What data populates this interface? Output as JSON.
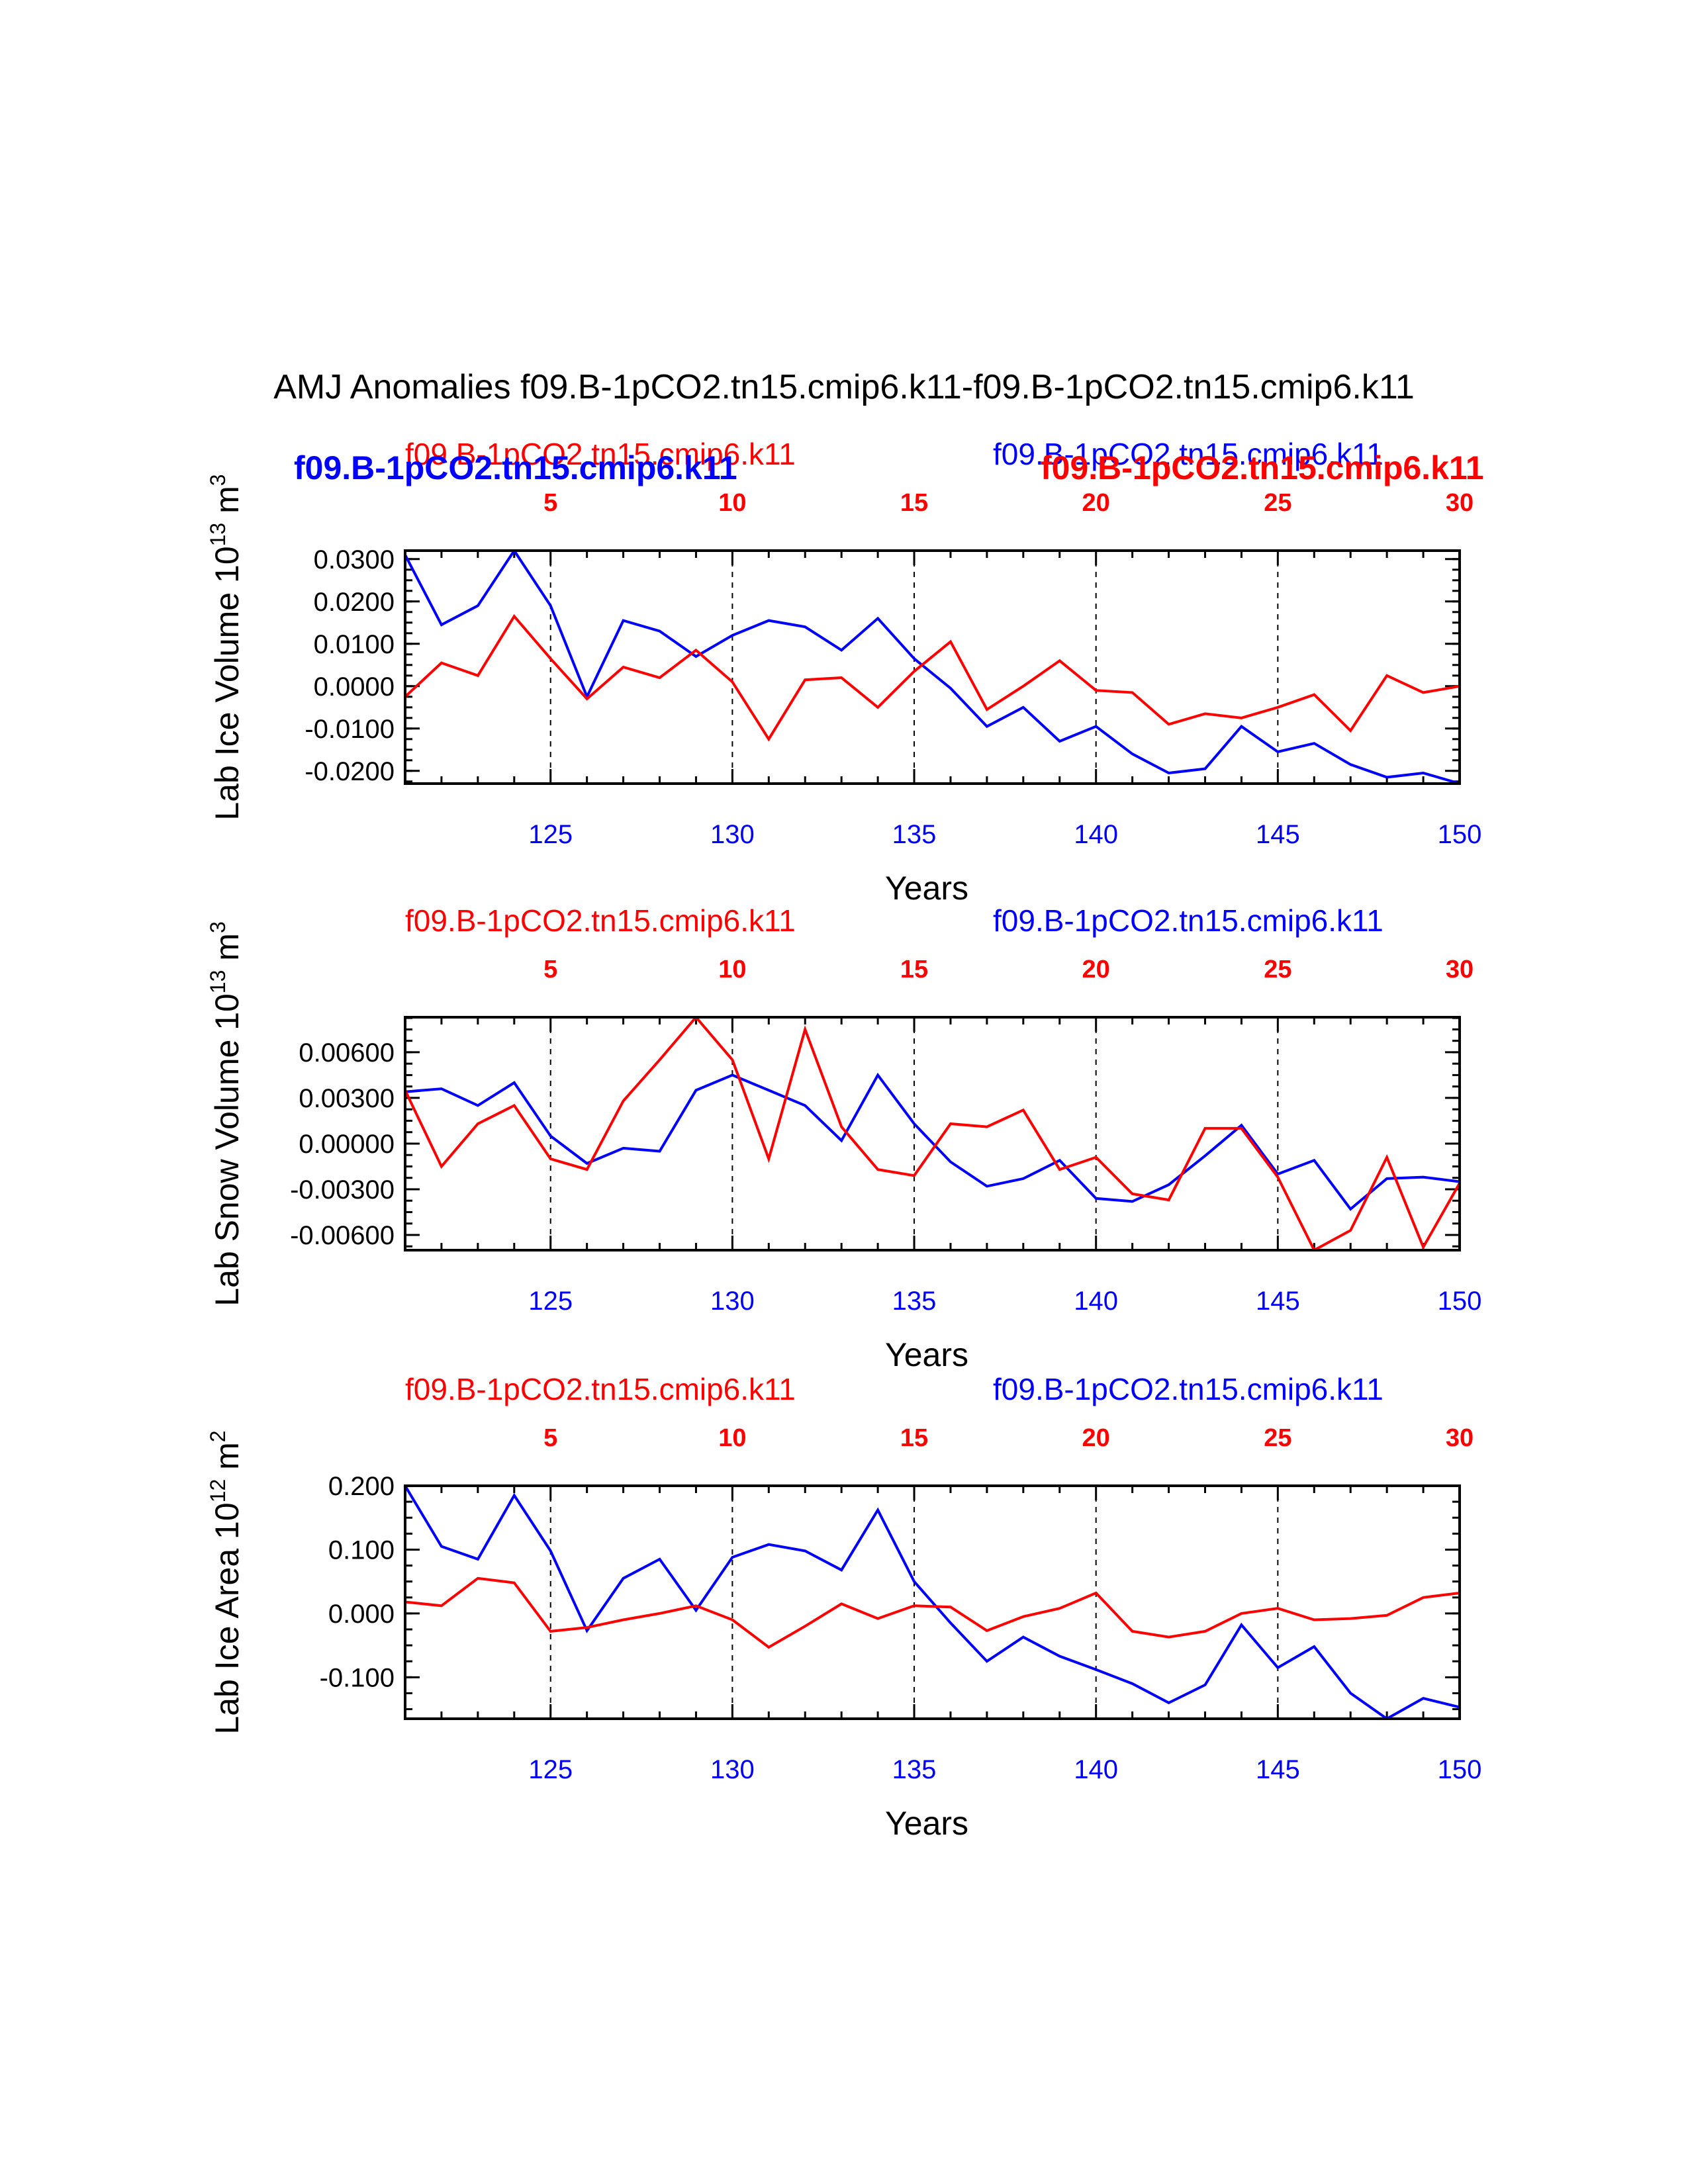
{
  "title": "AMJ Anomalies f09.B-1pCO2.tn15.cmip6.k11-f09.B-1pCO2.tn15.cmip6.k11",
  "colors": {
    "case1": "#ff0000",
    "case2": "#0000ff",
    "axis": "#000000"
  },
  "header": {
    "case1_label": "f09.B-1pCO2.tn15.cmip6.k11",
    "case2_label": "f09.B-1pCO2.tn15.cmip6.k11",
    "case1_bold_overlay": "f09.B-1pCO2.tn15.cmip6.k11",
    "case2_bold_overlay": "f09.B-1pCO2.tn15.cmip6.k11"
  },
  "chart_data": [
    {
      "type": "line",
      "ylabel_main": "Lab Ice Volume 10",
      "ylabel_exp": "13",
      "ylabel_unit": " m",
      "ylabel_unit_exp": "3",
      "xlabel": "Years",
      "xlim": [
        121,
        150
      ],
      "ylim": [
        -0.023,
        0.032
      ],
      "yticks": [
        0.03,
        0.02,
        0.01,
        0.0,
        -0.01,
        -0.02
      ],
      "ytick_labels": [
        "0.0300",
        "0.0200",
        "0.0100",
        "0.0000",
        "-0.0100",
        "-0.0200"
      ],
      "yminor_step": 0.0025,
      "xticks_bottom": [
        125,
        130,
        135,
        140,
        145,
        150
      ],
      "xticks_top_labels": [
        "5",
        "10",
        "15",
        "20",
        "25",
        "30"
      ],
      "x": [
        121,
        122,
        123,
        124,
        125,
        126,
        127,
        128,
        129,
        130,
        131,
        132,
        133,
        134,
        135,
        136,
        137,
        138,
        139,
        140,
        141,
        142,
        143,
        144,
        145,
        146,
        147,
        148,
        149,
        150
      ],
      "series": [
        {
          "name": "f09.B-1pCO2.tn15.cmip6.k11",
          "color": "#0000ff",
          "values": [
            0.031,
            0.0145,
            0.019,
            0.032,
            0.019,
            -0.0025,
            0.0155,
            0.013,
            0.007,
            0.012,
            0.0155,
            0.014,
            0.0085,
            0.016,
            0.0065,
            -0.0005,
            -0.0095,
            -0.005,
            -0.013,
            -0.0095,
            -0.016,
            -0.0205,
            -0.0195,
            -0.0095,
            -0.0155,
            -0.0135,
            -0.0185,
            -0.0215,
            -0.0205,
            -0.023
          ]
        },
        {
          "name": "f09.B-1pCO2.tn15.cmip6.k11",
          "color": "#ff0000",
          "values": [
            -0.0025,
            0.0055,
            0.0025,
            0.0165,
            0.0065,
            -0.003,
            0.0045,
            0.002,
            0.0085,
            0.001,
            -0.0125,
            0.0015,
            0.002,
            -0.005,
            0.0035,
            0.0105,
            -0.0055,
            0.0,
            0.006,
            -0.001,
            -0.0015,
            -0.009,
            -0.0065,
            -0.0075,
            -0.005,
            -0.002,
            -0.0105,
            0.0025,
            -0.0015,
            0.0
          ]
        }
      ]
    },
    {
      "type": "line",
      "ylabel_main": "Lab Snow Volume 10",
      "ylabel_exp": "13",
      "ylabel_unit": " m",
      "ylabel_unit_exp": "3",
      "xlabel": "Years",
      "xlim": [
        121,
        150
      ],
      "ylim": [
        -0.007,
        0.0083
      ],
      "yticks": [
        0.006,
        0.003,
        0.0,
        -0.003,
        -0.006
      ],
      "ytick_labels": [
        "0.00600",
        "0.00300",
        "0.00000",
        "-0.00300",
        "-0.00600"
      ],
      "yminor_step": 0.00075,
      "xticks_bottom": [
        125,
        130,
        135,
        140,
        145,
        150
      ],
      "xticks_top_labels": [
        "5",
        "10",
        "15",
        "20",
        "25",
        "30"
      ],
      "x": [
        121,
        122,
        123,
        124,
        125,
        126,
        127,
        128,
        129,
        130,
        131,
        132,
        133,
        134,
        135,
        136,
        137,
        138,
        139,
        140,
        141,
        142,
        143,
        144,
        145,
        146,
        147,
        148,
        149,
        150
      ],
      "series": [
        {
          "name": "f09.B-1pCO2.tn15.cmip6.k11",
          "color": "#0000ff",
          "values": [
            0.0034,
            0.0036,
            0.0025,
            0.004,
            0.0005,
            -0.0013,
            -0.0003,
            -0.0005,
            0.0035,
            0.0045,
            0.0035,
            0.0025,
            0.0002,
            0.0045,
            0.0013,
            -0.0012,
            -0.0028,
            -0.0023,
            -0.0011,
            -0.0036,
            -0.0038,
            -0.0027,
            -0.0008,
            0.0012,
            -0.002,
            -0.0011,
            -0.0043,
            -0.0023,
            -0.0022,
            -0.0025
          ]
        },
        {
          "name": "f09.B-1pCO2.tn15.cmip6.k11",
          "color": "#ff0000",
          "values": [
            0.0035,
            -0.0015,
            0.0013,
            0.0025,
            -0.001,
            -0.0017,
            0.0028,
            0.0055,
            0.0083,
            0.0055,
            -0.001,
            0.0075,
            0.0011,
            -0.0017,
            -0.0021,
            0.0013,
            0.0011,
            0.0022,
            -0.0017,
            -0.0009,
            -0.0033,
            -0.0037,
            0.001,
            0.001,
            -0.0022,
            -0.007,
            -0.0057,
            -0.0009,
            -0.0068,
            -0.0026
          ]
        }
      ]
    },
    {
      "type": "line",
      "ylabel_main": "Lab Ice Area 10",
      "ylabel_exp": "12",
      "ylabel_unit": " m",
      "ylabel_unit_exp": "2",
      "xlabel": "Years",
      "xlim": [
        121,
        150
      ],
      "ylim": [
        -0.165,
        0.2
      ],
      "yticks": [
        0.2,
        0.1,
        0.0,
        -0.1
      ],
      "ytick_labels": [
        "0.200",
        "0.100",
        "0.000",
        "-0.100"
      ],
      "yminor_step": 0.025,
      "xticks_bottom": [
        125,
        130,
        135,
        140,
        145,
        150
      ],
      "xticks_top_labels": [
        "5",
        "10",
        "15",
        "20",
        "25",
        "30"
      ],
      "x": [
        121,
        122,
        123,
        124,
        125,
        126,
        127,
        128,
        129,
        130,
        131,
        132,
        133,
        134,
        135,
        136,
        137,
        138,
        139,
        140,
        141,
        142,
        143,
        144,
        145,
        146,
        147,
        148,
        149,
        150
      ],
      "series": [
        {
          "name": "f09.B-1pCO2.tn15.cmip6.k11",
          "color": "#0000ff",
          "values": [
            0.2,
            0.105,
            0.085,
            0.185,
            0.098,
            -0.027,
            0.055,
            0.085,
            0.005,
            0.088,
            0.108,
            0.098,
            0.068,
            0.162,
            0.05,
            -0.015,
            -0.075,
            -0.037,
            -0.067,
            -0.088,
            -0.11,
            -0.14,
            -0.112,
            -0.018,
            -0.085,
            -0.052,
            -0.125,
            -0.165,
            -0.133,
            -0.147
          ]
        },
        {
          "name": "f09.B-1pCO2.tn15.cmip6.k11",
          "color": "#ff0000",
          "values": [
            0.018,
            0.012,
            0.055,
            0.048,
            -0.028,
            -0.022,
            -0.01,
            0.0,
            0.012,
            -0.01,
            -0.053,
            -0.02,
            0.015,
            -0.008,
            0.012,
            0.01,
            -0.027,
            -0.005,
            0.008,
            0.032,
            -0.028,
            -0.037,
            -0.028,
            0.0,
            0.008,
            -0.01,
            -0.008,
            -0.003,
            0.025,
            0.032
          ]
        }
      ]
    }
  ]
}
